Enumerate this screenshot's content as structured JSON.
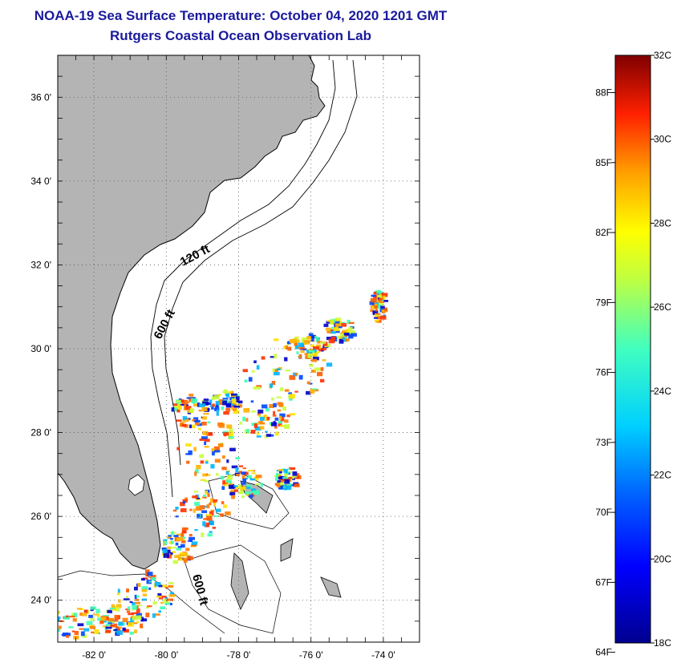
{
  "header": {
    "title": "NOAA-19 Sea Surface Temperature:  October 04, 2020 1201 GMT",
    "subtitle": "Rutgers Coastal Ocean Observation Lab"
  },
  "map": {
    "lat_range": [
      23,
      37
    ],
    "lon_range": [
      -83,
      -73
    ],
    "lat_ticks": [
      {
        "value": 36,
        "label": "36 0'"
      },
      {
        "value": 34,
        "label": "34 0'"
      },
      {
        "value": 32,
        "label": "32 0'"
      },
      {
        "value": 30,
        "label": "30 0'"
      },
      {
        "value": 28,
        "label": "28 0'"
      },
      {
        "value": 26,
        "label": "26 0'"
      },
      {
        "value": 24,
        "label": "24 0'"
      }
    ],
    "lon_ticks": [
      {
        "value": -82,
        "label": "-82 0'"
      },
      {
        "value": -80,
        "label": "-80 0'"
      },
      {
        "value": -78,
        "label": "-78 0'"
      },
      {
        "value": -76,
        "label": "-76 0'"
      },
      {
        "value": -74,
        "label": "-74 0'"
      }
    ],
    "contour_labels": [
      "120 ft",
      "600 ft",
      "600 ft"
    ],
    "colors": {
      "land": "#b4b4b4",
      "ocean": "#ffffff",
      "grid": "#555555"
    }
  },
  "colorbar": {
    "range_c": [
      18,
      32
    ],
    "celsius_labels": [
      "32C",
      "30C",
      "28C",
      "26C",
      "24C",
      "22C",
      "20C",
      "18C"
    ],
    "fahrenheit_labels": [
      "88F",
      "85F",
      "82F",
      "79F",
      "76F",
      "73F",
      "70F",
      "67F",
      "64F"
    ]
  }
}
